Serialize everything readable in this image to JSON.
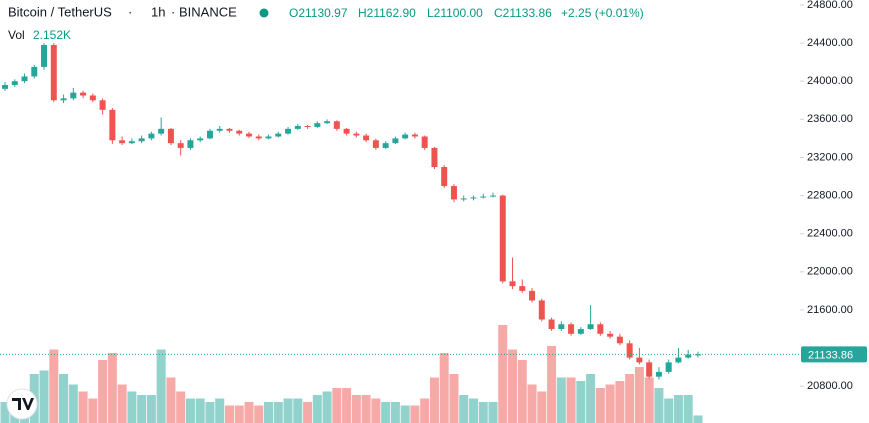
{
  "chart_data": {
    "type": "candlestick",
    "title": "Bitcoin / TetherUS",
    "interval": "1h",
    "exchange": "BINANCE",
    "header_ohlc": [
      "O21130.97",
      "H21162.90",
      "L21100.00",
      "C21133.86",
      "+2.25 (+0.01%)"
    ],
    "volume_name": "Vol",
    "volume_label": "2.152K",
    "up_color": "#26a69a",
    "down_color": "#ef5350",
    "ylim": [
      20414,
      24852
    ],
    "yticks": [
      {
        "value": 24800,
        "label": "24800.00"
      },
      {
        "value": 24400,
        "label": "24400.00"
      },
      {
        "value": 24000,
        "label": "24000.00"
      },
      {
        "value": 23600,
        "label": "23600.00"
      },
      {
        "value": 23200,
        "label": "23200.00"
      },
      {
        "value": 22800,
        "label": "22800.00"
      },
      {
        "value": 22400,
        "label": "22400.00"
      },
      {
        "value": 22000,
        "label": "22000.00"
      },
      {
        "value": 21600,
        "label": "21600.00"
      },
      {
        "value": 20800,
        "label": "20800.00"
      }
    ],
    "series": {
      "open": [
        23920,
        23960,
        24000,
        24050,
        24150,
        24380,
        23800,
        23820,
        23880,
        23850,
        23800,
        23700,
        23380,
        23350,
        23370,
        23400,
        23450,
        23500,
        23350,
        23300,
        23380,
        23400,
        23480,
        23500,
        23480,
        23450,
        23420,
        23400,
        23420,
        23450,
        23500,
        23530,
        23520,
        23560,
        23580,
        23500,
        23450,
        23430,
        23380,
        23300,
        23350,
        23400,
        23440,
        23420,
        23300,
        23100,
        22900,
        22760,
        22770,
        22780,
        22790,
        22800,
        21900,
        21850,
        21800,
        21700,
        21500,
        21400,
        21450,
        21350,
        21400,
        21450,
        21350,
        21320,
        21250,
        21100,
        21050,
        20900,
        20950,
        21050,
        21100,
        21130.97
      ],
      "high": [
        23990,
        24020,
        24080,
        24170,
        24400,
        24400,
        23860,
        23930,
        23900,
        23870,
        23820,
        23720,
        23420,
        23400,
        23430,
        23470,
        23620,
        23510,
        23380,
        23400,
        23420,
        23500,
        23530,
        23510,
        23490,
        23470,
        23440,
        23440,
        23470,
        23520,
        23550,
        23540,
        23580,
        23600,
        23590,
        23510,
        23470,
        23450,
        23400,
        23370,
        23420,
        23460,
        23460,
        23430,
        23310,
        23120,
        22920,
        22800,
        22800,
        22820,
        22830,
        22810,
        22150,
        21920,
        21830,
        21720,
        21520,
        21480,
        21470,
        21420,
        21650,
        21470,
        21380,
        21350,
        21280,
        21200,
        21080,
        21000,
        21080,
        21200,
        21180,
        21162.9
      ],
      "low": [
        23900,
        23940,
        23980,
        24030,
        24120,
        23780,
        23770,
        23800,
        23820,
        23780,
        23650,
        23340,
        23330,
        23340,
        23350,
        23380,
        23430,
        23330,
        23220,
        23280,
        23360,
        23390,
        23460,
        23460,
        23430,
        23400,
        23380,
        23390,
        23410,
        23440,
        23490,
        23500,
        23510,
        23550,
        23480,
        23430,
        23410,
        23360,
        23280,
        23290,
        23340,
        23390,
        23400,
        23280,
        23080,
        22880,
        22730,
        22740,
        22750,
        22770,
        22780,
        21880,
        21820,
        21780,
        21680,
        21480,
        21380,
        21380,
        21330,
        21340,
        21390,
        21330,
        21300,
        21230,
        21080,
        21030,
        20880,
        20870,
        20930,
        21040,
        21090,
        21100.0
      ],
      "close": [
        23960,
        24000,
        24050,
        24150,
        24380,
        23800,
        23820,
        23880,
        23850,
        23800,
        23700,
        23380,
        23350,
        23370,
        23400,
        23450,
        23500,
        23350,
        23300,
        23380,
        23400,
        23480,
        23500,
        23480,
        23450,
        23420,
        23400,
        23420,
        23450,
        23500,
        23530,
        23520,
        23560,
        23580,
        23500,
        23450,
        23430,
        23380,
        23300,
        23350,
        23400,
        23440,
        23420,
        23300,
        23100,
        22900,
        22760,
        22770,
        22780,
        22790,
        22800,
        21900,
        21850,
        21800,
        21700,
        21500,
        21400,
        21450,
        21350,
        21400,
        21450,
        21350,
        21320,
        21250,
        21100,
        21050,
        20900,
        20950,
        21050,
        21100,
        21131.61,
        21133.86
      ],
      "volume": [
        6,
        6,
        9,
        14,
        15,
        21,
        14,
        11,
        9,
        7,
        18,
        20,
        11,
        9,
        8,
        8,
        21,
        13,
        9,
        7,
        7,
        6,
        7,
        5,
        5,
        6,
        5,
        6,
        6,
        7,
        7,
        6,
        8,
        9,
        10,
        10,
        8,
        8,
        7,
        6,
        6,
        5,
        5,
        7,
        13,
        20,
        14,
        8,
        7,
        6,
        6,
        28,
        21,
        18,
        11,
        9,
        22,
        13,
        13,
        12,
        14,
        10,
        11,
        12,
        14,
        16,
        13,
        10,
        7,
        8,
        8,
        2.152
      ]
    }
  }
}
